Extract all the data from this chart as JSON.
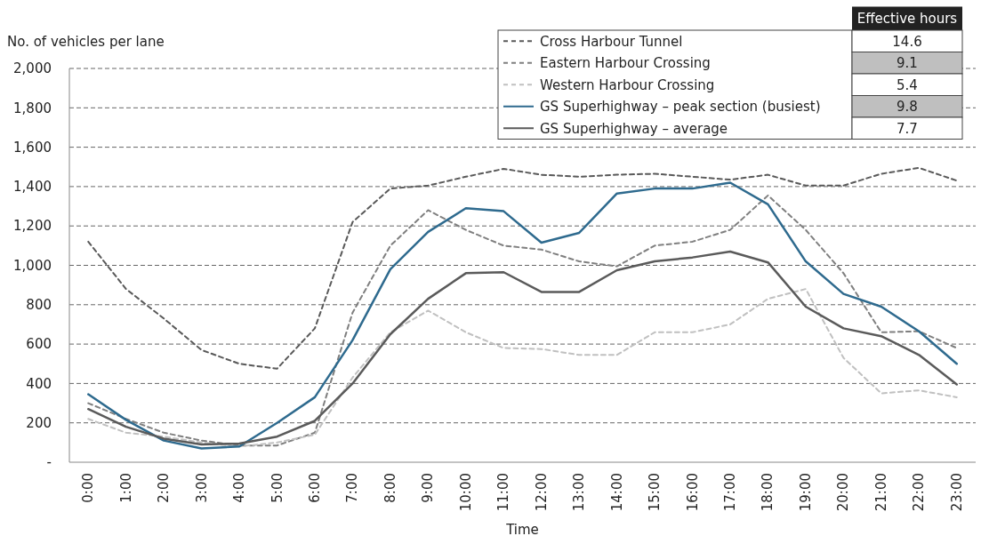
{
  "chart_data": {
    "type": "line",
    "xlabel": "Time",
    "ylabel": "No. of vehicles per lane",
    "categories": [
      "0:00",
      "1:00",
      "2:00",
      "3:00",
      "4:00",
      "5:00",
      "6:00",
      "7:00",
      "8:00",
      "9:00",
      "10:00",
      "11:00",
      "12:00",
      "13:00",
      "14:00",
      "15:00",
      "16:00",
      "17:00",
      "18:00",
      "19:00",
      "20:00",
      "21:00",
      "22:00",
      "23:00"
    ],
    "series": [
      {
        "name": "Cross Harbour Tunnel",
        "color": "#595959",
        "line_style": "dashed",
        "values": [
          1120,
          880,
          730,
          570,
          500,
          475,
          680,
          1220,
          1390,
          1405,
          1450,
          1490,
          1460,
          1450,
          1460,
          1465,
          1450,
          1435,
          1460,
          1405,
          1405,
          1465,
          1495,
          1430
        ]
      },
      {
        "name": "Eastern Harbour Crossing",
        "color": "#7f7f7f",
        "line_style": "dashed",
        "values": [
          300,
          220,
          150,
          110,
          85,
          85,
          150,
          760,
          1100,
          1280,
          1180,
          1100,
          1080,
          1020,
          995,
          1100,
          1120,
          1180,
          1355,
          1180,
          960,
          660,
          665,
          580
        ]
      },
      {
        "name": "Western Harbour Crossing",
        "color": "#c0c0c0",
        "line_style": "dashed",
        "values": [
          220,
          150,
          130,
          100,
          80,
          100,
          140,
          430,
          660,
          770,
          660,
          580,
          575,
          545,
          545,
          660,
          660,
          700,
          830,
          880,
          530,
          350,
          365,
          330
        ]
      },
      {
        "name": "GS Superhighway – peak section (busiest)",
        "color": "#2e6a8e",
        "line_style": "solid",
        "values": [
          345,
          215,
          110,
          70,
          80,
          200,
          330,
          620,
          980,
          1170,
          1290,
          1275,
          1115,
          1165,
          1365,
          1390,
          1390,
          1420,
          1310,
          1020,
          855,
          790,
          665,
          500
        ]
      },
      {
        "name": "GS Superhighway – average",
        "color": "#5a5a5a",
        "line_style": "solid",
        "values": [
          270,
          180,
          120,
          90,
          95,
          130,
          210,
          400,
          650,
          830,
          960,
          965,
          865,
          865,
          975,
          1020,
          1040,
          1070,
          1015,
          790,
          680,
          640,
          545,
          395
        ]
      }
    ],
    "ylim": [
      0,
      2000
    ],
    "yticks": [
      {
        "value": 0,
        "label": "-"
      },
      {
        "value": 200,
        "label": "200"
      },
      {
        "value": 400,
        "label": "400"
      },
      {
        "value": 600,
        "label": "600"
      },
      {
        "value": 800,
        "label": "800"
      },
      {
        "value": 1000,
        "label": "1,000"
      },
      {
        "value": 1200,
        "label": "1,200"
      },
      {
        "value": 1400,
        "label": "1,400"
      },
      {
        "value": 1600,
        "label": "1,600"
      },
      {
        "value": 1800,
        "label": "1,800"
      },
      {
        "value": 2000,
        "label": "2,000"
      }
    ],
    "grid": "y",
    "legend": "top right",
    "marker": "none",
    "annotations": [
      "Effective hours",
      "14.6",
      "9.1",
      "5.4",
      "9.8",
      "7.7"
    ]
  }
}
